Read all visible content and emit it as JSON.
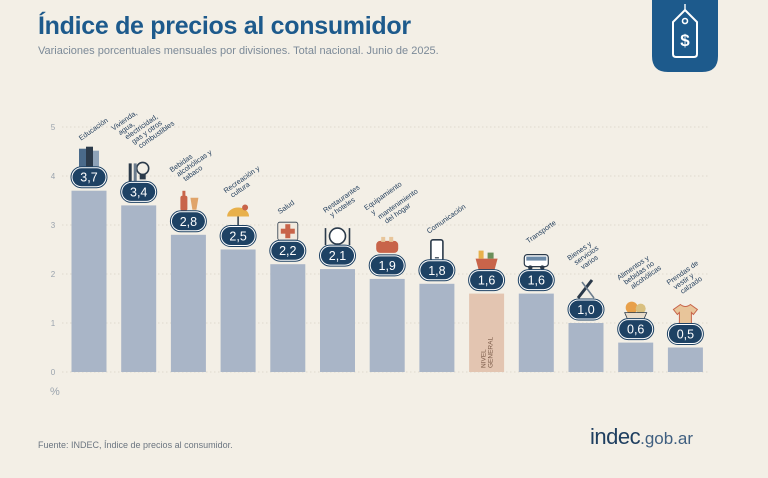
{
  "header": {
    "title": "Índice de precios al consumidor",
    "subtitle": "Variaciones porcentuales mensuales por divisiones. Total nacional. Junio de 2025."
  },
  "footer": {
    "source": "Fuente: INDEC, Índice de precios al consumidor.",
    "brand_main": "indec",
    "brand_tld": ".gob.ar"
  },
  "badge": {
    "icon": "price-tag-dollar-icon",
    "color": "#1d5a8c"
  },
  "chart_data": {
    "type": "bar",
    "ylabel": "%",
    "ylim": [
      0,
      5
    ],
    "yticks": [
      "0",
      "1",
      "2",
      "3",
      "4",
      "5"
    ],
    "grid": true,
    "categories": [
      "Educación",
      "Vivienda, agua, electricidad, gas y otros combustibles",
      "Bebidas alcohólicas y tabaco",
      "Recreación y cultura",
      "Salud",
      "Restaurantes y hoteles",
      "Equipamiento y mantenimiento del hogar",
      "Comunicación",
      "NIVEL GENERAL",
      "Transporte",
      "Bienes y servicios varios",
      "Alimentos y bebidas no alcohólicas",
      "Prendas de vestir y calzado"
    ],
    "values": [
      3.7,
      3.4,
      2.8,
      2.5,
      2.2,
      2.1,
      1.9,
      1.8,
      1.6,
      1.6,
      1.0,
      0.6,
      0.5
    ],
    "value_labels": [
      "3,7",
      "3,4",
      "2,8",
      "2,5",
      "2,2",
      "2,1",
      "1,9",
      "1,8",
      "1,6",
      "1,6",
      "1,0",
      "0,6",
      "0,5"
    ],
    "icons": [
      "books-icon",
      "lightbulb-icon",
      "bottle-glass-icon",
      "umbrella-sun-icon",
      "first-aid-cross-icon",
      "plate-cutlery-icon",
      "toaster-icon",
      "smartphone-icon",
      "market-basket-icon",
      "bus-icon",
      "comb-scissors-icon",
      "fruit-basket-icon",
      "tshirt-icon"
    ],
    "highlight_index": 8,
    "colors": {
      "bar": "#a9b5c7",
      "highlight_bar": "#e3c5b1",
      "grid": "#d9d4c8",
      "axis_text": "#9aa3ad",
      "label_text": "#1f3b5a",
      "bubble": "#1e4264",
      "bubble_text": "#ffffff"
    }
  }
}
